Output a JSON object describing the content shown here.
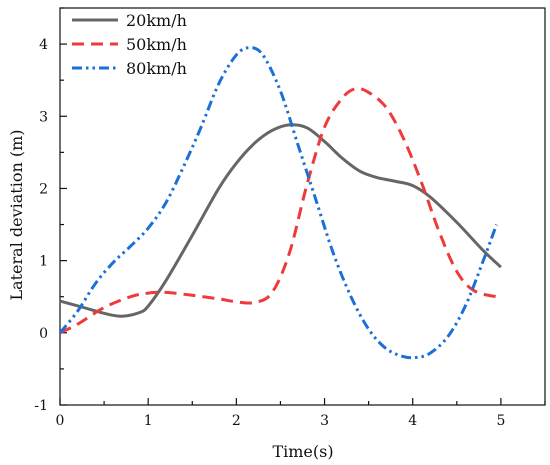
{
  "chart_data": {
    "type": "line",
    "title": "",
    "xlabel": "Time(s)",
    "ylabel": "Lateral deviation (m)",
    "xlim": [
      0,
      5.5
    ],
    "ylim": [
      -1,
      4.5
    ],
    "x_ticks": [
      0,
      1,
      2,
      3,
      4,
      5
    ],
    "y_ticks": [
      -1,
      0,
      1,
      2,
      3,
      4
    ],
    "grid": false,
    "legend_position": "top-left",
    "series": [
      {
        "name": "20km/h",
        "color": "#666666",
        "dash": "solid",
        "x": [
          0.0,
          0.3,
          0.5,
          0.7,
          0.9,
          1.0,
          1.2,
          1.5,
          1.8,
          2.0,
          2.2,
          2.4,
          2.6,
          2.8,
          3.0,
          3.2,
          3.4,
          3.6,
          3.8,
          4.0,
          4.2,
          4.5,
          4.8,
          5.0
        ],
        "y": [
          0.44,
          0.34,
          0.27,
          0.23,
          0.28,
          0.37,
          0.72,
          1.35,
          2.0,
          2.35,
          2.62,
          2.8,
          2.88,
          2.84,
          2.65,
          2.42,
          2.24,
          2.15,
          2.1,
          2.04,
          1.88,
          1.53,
          1.14,
          0.91
        ]
      },
      {
        "name": "50km/h",
        "color": "#ee3a3a",
        "dash": "dashed",
        "x": [
          0.0,
          0.2,
          0.5,
          0.8,
          1.0,
          1.2,
          1.5,
          1.8,
          2.0,
          2.2,
          2.4,
          2.6,
          2.8,
          3.0,
          3.2,
          3.35,
          3.5,
          3.7,
          3.9,
          4.1,
          4.3,
          4.5,
          4.7,
          5.0
        ],
        "y": [
          0.0,
          0.12,
          0.35,
          0.5,
          0.55,
          0.56,
          0.52,
          0.47,
          0.43,
          0.42,
          0.55,
          1.1,
          2.05,
          2.85,
          3.25,
          3.38,
          3.33,
          3.12,
          2.68,
          2.08,
          1.4,
          0.85,
          0.58,
          0.49
        ]
      },
      {
        "name": "80km/h",
        "color": "#1a6fd8",
        "dash": "dashdotdot",
        "x": [
          0.0,
          0.2,
          0.4,
          0.6,
          0.8,
          1.0,
          1.2,
          1.4,
          1.6,
          1.8,
          2.0,
          2.15,
          2.3,
          2.5,
          2.7,
          2.9,
          3.1,
          3.3,
          3.5,
          3.7,
          3.9,
          4.05,
          4.2,
          4.4,
          4.6,
          4.8,
          4.95
        ],
        "y": [
          0.0,
          0.3,
          0.68,
          0.97,
          1.2,
          1.45,
          1.8,
          2.3,
          2.85,
          3.45,
          3.85,
          3.95,
          3.85,
          3.35,
          2.6,
          1.85,
          1.1,
          0.5,
          0.05,
          -0.22,
          -0.33,
          -0.34,
          -0.28,
          -0.05,
          0.38,
          1.0,
          1.5
        ]
      }
    ]
  }
}
